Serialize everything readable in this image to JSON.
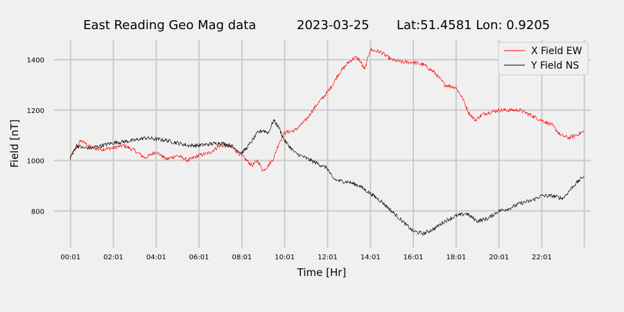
{
  "chart_data": {
    "type": "line",
    "title": {
      "name": "East Reading Geo Mag data",
      "date": "2023-03-25",
      "location": "Lat:51.4581  Lon: 0.9205"
    },
    "xlabel": "Time  [Hr]",
    "ylabel": "Field  [nT]",
    "x_ticks": [
      {
        "label": "00:01",
        "hour": 0.017
      },
      {
        "label": "02:01",
        "hour": 2.017
      },
      {
        "label": "04:01",
        "hour": 4.017
      },
      {
        "label": "06:01",
        "hour": 6.017
      },
      {
        "label": "08:01",
        "hour": 8.017
      },
      {
        "label": "10:01",
        "hour": 10.017
      },
      {
        "label": "12:01",
        "hour": 12.017
      },
      {
        "label": "14:01",
        "hour": 14.017
      },
      {
        "label": "16:01",
        "hour": 16.017
      },
      {
        "label": "18:01",
        "hour": 18.017
      },
      {
        "label": "20:01",
        "hour": 20.017
      },
      {
        "label": "22:01",
        "hour": 22.017
      }
    ],
    "xlim": [
      -0.75,
      24.3
    ],
    "ylim": [
      655,
      1480
    ],
    "y_ticks": [
      800,
      1000,
      1200,
      1400
    ],
    "grid": true,
    "legend": "top-right",
    "series": [
      {
        "name": "X Field EW",
        "color": "#ff0000",
        "x": [
          0,
          0.5,
          1,
          1.5,
          2,
          2.5,
          3,
          3.5,
          4,
          4.5,
          5,
          5.5,
          6,
          6.5,
          7,
          7.5,
          8,
          8.25,
          8.5,
          8.75,
          9,
          9.25,
          9.5,
          9.75,
          10,
          10.5,
          11,
          11.5,
          12,
          12.25,
          12.5,
          13,
          13.3,
          13.5,
          13.75,
          14,
          14.5,
          15,
          15.5,
          16,
          16.5,
          17,
          17.5,
          18,
          18.3,
          18.6,
          18.9,
          19.2,
          19.5,
          20,
          20.5,
          21,
          21.5,
          22,
          22.5,
          22.9,
          23.3,
          23.6,
          24
        ],
        "y": [
          1010,
          1080,
          1050,
          1045,
          1050,
          1060,
          1040,
          1010,
          1035,
          1005,
          1020,
          1000,
          1020,
          1030,
          1060,
          1055,
          1020,
          1000,
          980,
          1000,
          960,
          980,
          1010,
          1070,
          1110,
          1120,
          1160,
          1220,
          1270,
          1300,
          1340,
          1390,
          1410,
          1400,
          1360,
          1440,
          1430,
          1400,
          1390,
          1390,
          1380,
          1350,
          1300,
          1290,
          1250,
          1190,
          1160,
          1180,
          1190,
          1200,
          1200,
          1200,
          1180,
          1160,
          1140,
          1100,
          1090,
          1100,
          1115
        ]
      },
      {
        "name": "Y Field NS",
        "color": "#000000",
        "x": [
          0,
          0.3,
          0.6,
          1,
          1.5,
          2,
          2.5,
          3,
          3.5,
          4,
          4.5,
          5,
          5.5,
          6,
          6.5,
          7,
          7.5,
          8,
          8.25,
          8.5,
          8.75,
          9,
          9.25,
          9.5,
          9.75,
          10,
          10.5,
          11,
          11.5,
          12,
          12.25,
          12.5,
          13,
          13.5,
          14,
          14.5,
          15,
          15.5,
          16,
          16.5,
          17,
          17.5,
          18,
          18.5,
          19,
          19.5,
          20,
          20.5,
          21,
          21.5,
          22,
          22.5,
          23,
          23.5,
          24
        ],
        "y": [
          1010,
          1060,
          1050,
          1050,
          1060,
          1070,
          1075,
          1080,
          1090,
          1085,
          1080,
          1070,
          1060,
          1060,
          1065,
          1070,
          1060,
          1030,
          1050,
          1080,
          1110,
          1120,
          1110,
          1160,
          1130,
          1080,
          1030,
          1010,
          990,
          970,
          930,
          920,
          915,
          900,
          870,
          840,
          800,
          760,
          720,
          710,
          730,
          760,
          780,
          790,
          760,
          770,
          800,
          810,
          830,
          840,
          860,
          860,
          850,
          900,
          940
        ]
      }
    ]
  }
}
